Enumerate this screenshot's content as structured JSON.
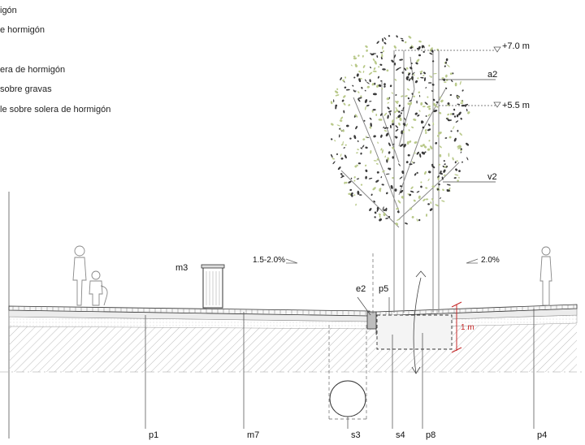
{
  "legend": [
    "igón",
    "e hormigón",
    "era de hormigón",
    "sobre gravas",
    "le sobre solera de hormigón"
  ],
  "elevations": {
    "top": "+7.0 m",
    "mid": "+5.5 m"
  },
  "callouts": {
    "a2": "a2",
    "v2": "v2",
    "m3": "m3",
    "e2": "e2",
    "p5": "p5"
  },
  "slopes": {
    "left": "1.5-2.0%",
    "right": "2.0%"
  },
  "dimension": "1 m",
  "bottom_labels": {
    "p1": "p1",
    "m7": "m7",
    "s3": "s3",
    "s4": "s4",
    "p8": "p8",
    "p4": "p4"
  },
  "colors": {
    "line": "#333333",
    "hatch": "#b8b8b8",
    "accent": "#c62828",
    "foliage_dark": "#3a3a3a",
    "foliage_light": "#b9c98a"
  }
}
